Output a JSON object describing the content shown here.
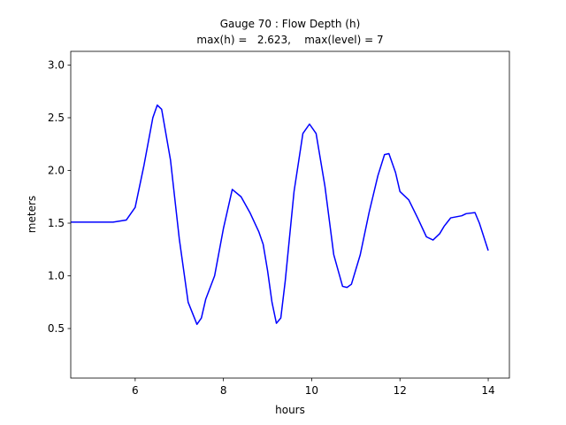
{
  "chart_data": {
    "type": "line",
    "title": "Gauge 70 : Flow Depth (h)",
    "subtitle": "max(h) =   2.623,    max(level) = 7",
    "xlabel": "hours",
    "ylabel": "meters",
    "x": [
      4.54,
      5.0,
      5.5,
      5.8,
      6.0,
      6.2,
      6.4,
      6.5,
      6.6,
      6.8,
      7.0,
      7.2,
      7.4,
      7.5,
      7.6,
      7.8,
      8.0,
      8.2,
      8.4,
      8.6,
      8.8,
      8.9,
      9.0,
      9.1,
      9.2,
      9.3,
      9.4,
      9.6,
      9.8,
      9.95,
      10.1,
      10.3,
      10.5,
      10.7,
      10.8,
      10.9,
      11.1,
      11.3,
      11.5,
      11.65,
      11.75,
      11.9,
      12.0,
      12.2,
      12.4,
      12.6,
      12.75,
      12.9,
      13.0,
      13.15,
      13.4,
      13.5,
      13.7,
      13.8,
      14.0
    ],
    "values": [
      1.51,
      1.51,
      1.51,
      1.53,
      1.65,
      2.05,
      2.5,
      2.62,
      2.58,
      2.1,
      1.35,
      0.75,
      0.54,
      0.6,
      0.78,
      1.0,
      1.45,
      1.82,
      1.75,
      1.6,
      1.42,
      1.3,
      1.05,
      0.75,
      0.55,
      0.6,
      0.95,
      1.8,
      2.35,
      2.44,
      2.35,
      1.85,
      1.2,
      0.9,
      0.89,
      0.92,
      1.2,
      1.6,
      1.95,
      2.15,
      2.16,
      1.98,
      1.8,
      1.72,
      1.55,
      1.37,
      1.34,
      1.4,
      1.47,
      1.55,
      1.57,
      1.59,
      1.6,
      1.5,
      1.24
    ],
    "color": "#0000ff",
    "xlim": [
      4.54,
      14.48
    ],
    "xticks": [
      6,
      8,
      10,
      12,
      14
    ],
    "ylim": [
      0.03,
      3.13
    ],
    "yticks": [
      0.5,
      {
        "value": 1,
        "label": "1.0"
      },
      1.5,
      {
        "value": 2,
        "label": "2.0"
      },
      2.5,
      {
        "value": 3,
        "label": "3.0"
      }
    ],
    "grid": false
  }
}
